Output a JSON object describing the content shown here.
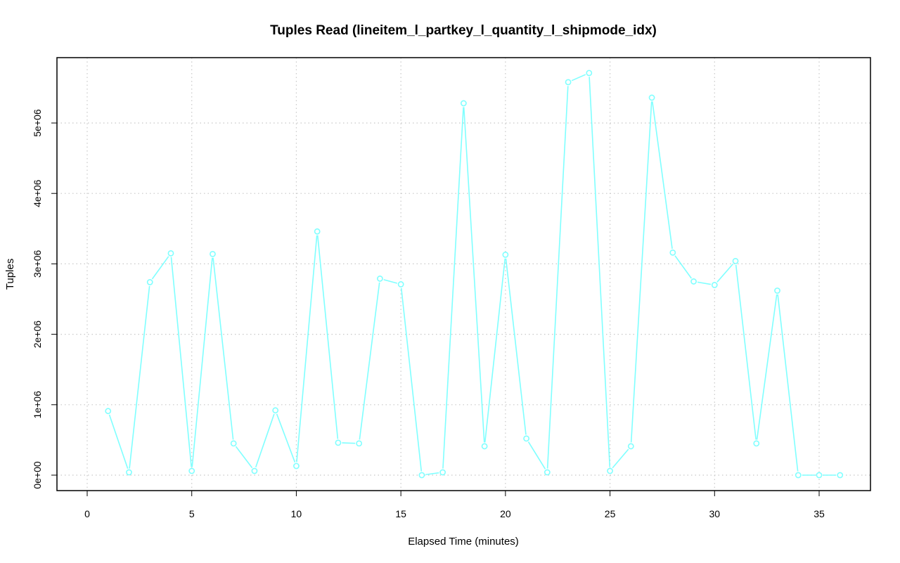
{
  "chart_data": {
    "type": "line",
    "title": "Tuples Read (lineitem_l_partkey_l_quantity_l_shipmode_idx)",
    "xlabel": "Elapsed Time (minutes)",
    "ylabel": "Tuples",
    "xlim": [
      0,
      37
    ],
    "ylim": [
      0,
      5900000
    ],
    "grid": true,
    "x_ticks": [
      0,
      5,
      10,
      15,
      20,
      25,
      30,
      35
    ],
    "x_tick_labels": [
      "0",
      "5",
      "10",
      "15",
      "20",
      "25",
      "30",
      "35"
    ],
    "y_ticks": [
      0,
      1000000,
      2000000,
      3000000,
      4000000,
      5000000
    ],
    "y_tick_labels": [
      "0e+00",
      "1e+06",
      "2e+06",
      "3e+06",
      "4e+06",
      "5e+06"
    ],
    "series": [
      {
        "color": "#80ffff",
        "marker": "open-circle",
        "x": [
          1,
          2,
          3,
          4,
          5,
          6,
          7,
          8,
          9,
          10,
          11,
          12,
          13,
          14,
          15,
          16,
          17,
          18,
          19,
          20,
          21,
          22,
          23,
          24,
          25,
          26,
          27,
          28,
          29,
          30,
          31,
          32,
          33,
          34,
          35,
          36
        ],
        "values": [
          910000,
          40000,
          2740000,
          3150000,
          60000,
          3140000,
          450000,
          60000,
          920000,
          130000,
          3460000,
          460000,
          450000,
          2790000,
          2710000,
          0,
          40000,
          5280000,
          410000,
          3130000,
          520000,
          40000,
          5580000,
          5710000,
          60000,
          410000,
          5360000,
          3160000,
          2750000,
          2700000,
          3040000,
          450000,
          2620000,
          0,
          0,
          0
        ]
      }
    ]
  }
}
